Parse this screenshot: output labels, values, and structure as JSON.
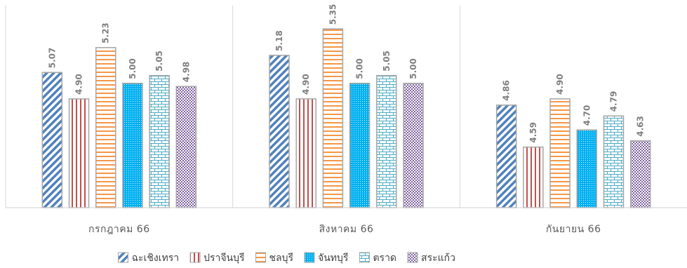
{
  "chart_data": {
    "type": "bar",
    "categories": [
      "กรกฎาคม  66",
      "สิงหาคม  66",
      "กันยายน  66"
    ],
    "series": [
      {
        "name": "ฉะเชิงเทรา",
        "values": [
          5.07,
          5.18,
          4.86
        ],
        "color": "#4f81bd",
        "pattern": "diagonal-stripes"
      },
      {
        "name": "ปราจีนบุรี",
        "values": [
          4.9,
          4.9,
          4.59
        ],
        "color": "#c0504d",
        "pattern": "vertical-stripes"
      },
      {
        "name": "ชลบุรี",
        "values": [
          5.23,
          5.35,
          4.9
        ],
        "color": "#f79646",
        "pattern": "horizontal-stripes"
      },
      {
        "name": "จันทบุรี",
        "values": [
          5.0,
          5.0,
          4.7
        ],
        "color": "#00b0f0",
        "pattern": "dots"
      },
      {
        "name": "ตราด",
        "values": [
          5.05,
          5.05,
          4.79
        ],
        "color": "#4bacc6",
        "pattern": "bricks"
      },
      {
        "name": "สระแก้ว",
        "values": [
          4.98,
          5.0,
          4.63
        ],
        "color": "#8064a2",
        "pattern": "checker"
      }
    ],
    "ylim": [
      4.2,
      5.5
    ],
    "value_format": "2-decimal",
    "grid": false,
    "legend_position": "bottom",
    "bar_border_color": "#a5a5a5",
    "label_color": "#7f7f7f"
  }
}
